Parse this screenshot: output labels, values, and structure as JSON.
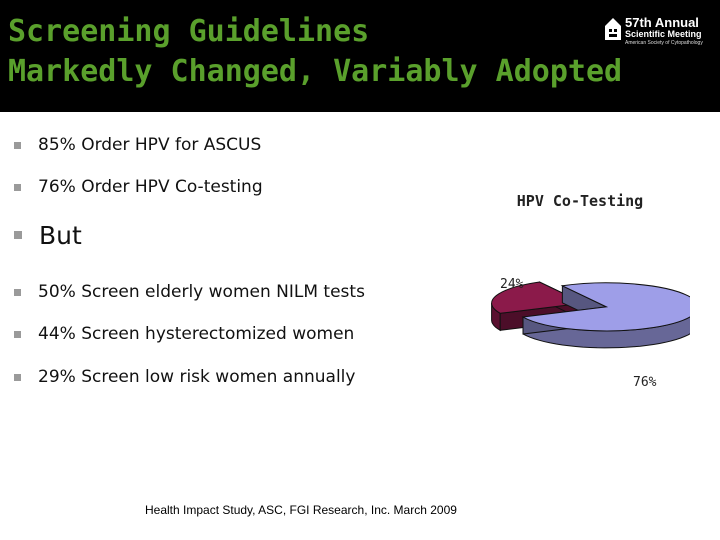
{
  "slide": {
    "title_line1": "Screening Guidelines",
    "title_line2": "Markedly Changed, Variably Adopted",
    "logo": {
      "line1": "57th Annual",
      "line2": "Scientific Meeting",
      "line3": "American Society of Cytopathology",
      "icon": "cytopathology-logo-icon"
    },
    "bullets": [
      {
        "text": "85% Order HPV for ASCUS"
      },
      {
        "text": "76% Order HPV Co-testing"
      },
      {
        "text": "But"
      },
      {
        "text": "50% Screen elderly women NILM tests"
      },
      {
        "text": "44% Screen hysterectomized women"
      },
      {
        "text": "29% Screen low risk women annually"
      }
    ],
    "footnote": "Health Impact Study, ASC, FGI Research, Inc. March 2009"
  },
  "chart_data": {
    "type": "pie",
    "title": "HPV Co-Testing",
    "categories": [
      "",
      ""
    ],
    "values": [
      24,
      76
    ],
    "data_labels": [
      "24%",
      "76%"
    ],
    "colors": [
      "#8b1a4a",
      "#9e9ee8"
    ],
    "style": "3d-exploded",
    "legend": "none"
  }
}
